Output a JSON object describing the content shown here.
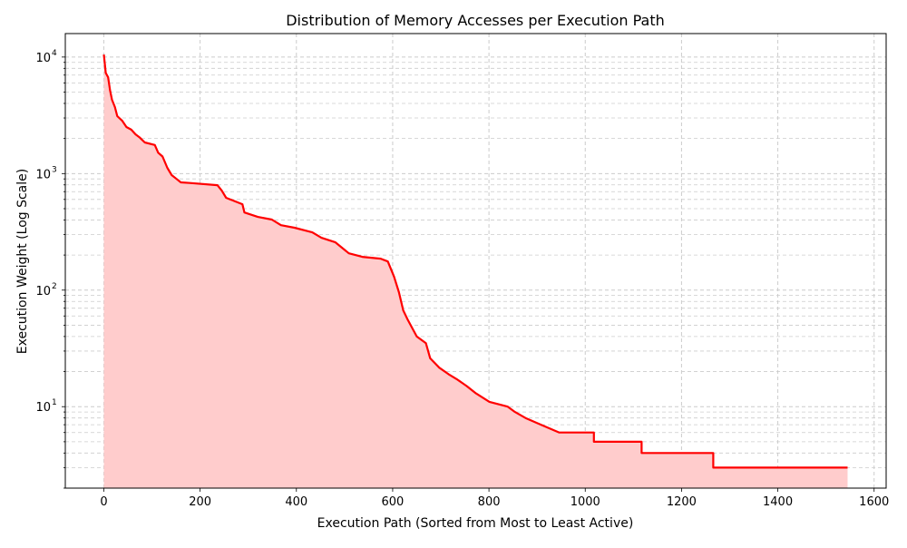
{
  "chart_data": {
    "type": "area",
    "title": "Distribution of Memory Accesses per Execution Path",
    "xlabel": "Execution Path (Sorted from Most to Least Active)",
    "ylabel": "Execution Weight (Log Scale)",
    "xlim": [
      -80,
      1625
    ],
    "ylim": [
      2,
      15900
    ],
    "yscale": "log",
    "grid": true,
    "x_ticks": [
      0,
      200,
      400,
      600,
      800,
      1000,
      1200,
      1400,
      1600
    ],
    "x_tick_labels": [
      "0",
      "200",
      "400",
      "600",
      "800",
      "1000",
      "1200",
      "1400",
      "1600"
    ],
    "y_ticks": [
      10,
      100,
      1000,
      10000
    ],
    "y_tick_labels": [
      {
        "base": "10",
        "exp": "1"
      },
      {
        "base": "10",
        "exp": "2"
      },
      {
        "base": "10",
        "exp": "3"
      },
      {
        "base": "10",
        "exp": "4"
      }
    ],
    "line_color": "#ff0000",
    "fill_color": "#ffcccc",
    "x": [
      0,
      4,
      9,
      13,
      17,
      23,
      28,
      38,
      47,
      57,
      66,
      75,
      85,
      106,
      113,
      122,
      132,
      141,
      151,
      160,
      179,
      236,
      245,
      254,
      273,
      288,
      292,
      320,
      349,
      368,
      396,
      433,
      452,
      481,
      509,
      537,
      575,
      590,
      603,
      613,
      622,
      631,
      650,
      669,
      678,
      697,
      716,
      735,
      754,
      773,
      801,
      839,
      854,
      876,
      908,
      946,
      1018,
      1018,
      1117,
      1117,
      1266,
      1266,
      1545
    ],
    "y": [
      10500,
      7300,
      6700,
      5150,
      4300,
      3720,
      3110,
      2850,
      2510,
      2380,
      2170,
      2030,
      1850,
      1760,
      1510,
      1400,
      1120,
      970,
      900,
      840,
      830,
      795,
      714,
      620,
      577,
      546,
      464,
      425,
      403,
      361,
      343,
      313,
      281,
      257,
      207,
      193,
      186,
      176,
      130,
      96,
      67,
      56,
      40,
      35,
      26,
      21.6,
      19,
      17,
      15,
      13,
      11,
      10,
      9,
      8,
      7,
      6,
      6,
      5,
      5,
      4,
      4,
      3,
      3
    ]
  }
}
